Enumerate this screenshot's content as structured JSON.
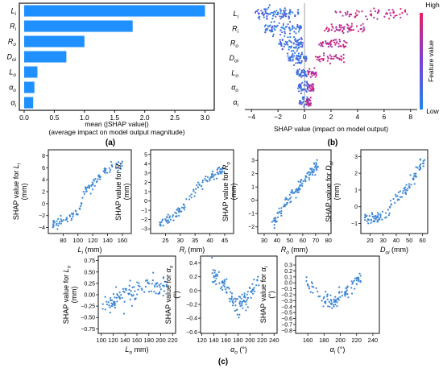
{
  "figure": {
    "panel_labels": [
      "(a)",
      "(b)",
      "(c)"
    ],
    "colors": {
      "bar": "#1e90ff",
      "low": "#1e88e5",
      "high": "#e91e63",
      "point": "#3a86d6",
      "axis": "#111111",
      "zero_line": "#8a8a8a"
    }
  },
  "chart_data": [
    {
      "id": "a",
      "type": "bar",
      "orientation": "horizontal",
      "categories": [
        "L_i",
        "R_i",
        "R_o",
        "D_oi",
        "L_o",
        "α_o",
        "α_i"
      ],
      "category_display": [
        {
          "main": "L",
          "sub": "i"
        },
        {
          "main": "R",
          "sub": "i"
        },
        {
          "main": "R",
          "sub": "o"
        },
        {
          "main": "D",
          "sub": "oi"
        },
        {
          "main": "L",
          "sub": "o"
        },
        {
          "main": "α",
          "sub": "o"
        },
        {
          "main": "α",
          "sub": "i"
        }
      ],
      "values": [
        3.0,
        1.8,
        1.0,
        0.7,
        0.22,
        0.17,
        0.15
      ],
      "xlim": [
        0,
        3.1
      ],
      "xticks": [
        "0.0",
        "0.5",
        "1.0",
        "1.5",
        "2.0",
        "2.5",
        "3.0"
      ],
      "xlabel_line1": "mean (|SHAP value|)",
      "xlabel_line2": "(average impact on model output magnitude)",
      "grid": false
    },
    {
      "id": "b",
      "type": "scatter",
      "subtype": "beeswarm",
      "features": [
        "L_i",
        "R_i",
        "R_o",
        "D_oi",
        "L_o",
        "α_o",
        "α_i"
      ],
      "feature_display": [
        {
          "main": "L",
          "sub": "i"
        },
        {
          "main": "R",
          "sub": "i"
        },
        {
          "main": "R",
          "sub": "o"
        },
        {
          "main": "D",
          "sub": "oi"
        },
        {
          "main": "L",
          "sub": "o"
        },
        {
          "main": "α",
          "sub": "o"
        },
        {
          "main": "α",
          "sub": "i"
        }
      ],
      "xlim": [
        -4.5,
        8.5
      ],
      "xticks": [
        "−4",
        "−2",
        "0",
        "2",
        "4",
        "6",
        "8"
      ],
      "xlabel": "SHAP value (impact on model output)",
      "colorbar": {
        "label": "Feature value",
        "high": "High",
        "low": "Low"
      },
      "spread": [
        {
          "blue_range": [
            -3.8,
            -0.4
          ],
          "blue_center": -2.3,
          "red_range": [
            2.3,
            7.8
          ],
          "n": 150
        },
        {
          "blue_range": [
            -3.0,
            -0.2
          ],
          "blue_center": -1.6,
          "red_range": [
            1.5,
            4.6
          ],
          "n": 130
        },
        {
          "blue_range": [
            -2.0,
            -0.1
          ],
          "blue_center": -0.9,
          "red_range": [
            1.0,
            3.2
          ],
          "n": 120
        },
        {
          "blue_range": [
            -1.3,
            0.2
          ],
          "blue_center": -0.6,
          "red_range": [
            0.8,
            3.0
          ],
          "n": 100
        },
        {
          "blue_range": [
            -0.6,
            0.2
          ],
          "blue_center": -0.1,
          "red_range": [
            0.2,
            0.9
          ],
          "n": 70
        },
        {
          "blue_range": [
            -0.5,
            0.4
          ],
          "blue_center": 0.0,
          "red_range": [
            0.2,
            0.7
          ],
          "n": 60
        },
        {
          "blue_range": [
            -0.4,
            0.3
          ],
          "blue_center": 0.0,
          "red_range": [
            0.1,
            0.5
          ],
          "n": 50
        }
      ]
    },
    {
      "id": "c1",
      "type": "scatter",
      "ylabel_prefix": "SHAP value for ",
      "ylabel_var": {
        "main": "L",
        "sub": "i"
      },
      "ylabel_unit": "(mm)",
      "xlabel_var": {
        "main": "L",
        "sub": "i"
      },
      "xlabel_unit": " (mm)",
      "xlim": [
        60,
        172
      ],
      "ylim": [
        -5,
        9
      ],
      "xticks": [
        {
          "v": 80,
          "t": "80"
        },
        {
          "v": 100,
          "t": "100"
        },
        {
          "v": 120,
          "t": "120"
        },
        {
          "v": 140,
          "t": "140"
        },
        {
          "v": 160,
          "t": "160"
        }
      ],
      "yticks": [
        {
          "v": -4,
          "t": "−4"
        },
        {
          "v": -2,
          "t": "−2"
        },
        {
          "v": 0,
          "t": "0"
        },
        {
          "v": 2,
          "t": "2"
        },
        {
          "v": 4,
          "t": "4"
        },
        {
          "v": 6,
          "t": "6"
        },
        {
          "v": 8,
          "t": "8"
        }
      ],
      "trend": [
        [
          66,
          -3.5
        ],
        [
          90,
          -2.4
        ],
        [
          102,
          -1.0
        ],
        [
          108,
          1.8
        ],
        [
          122,
          3.4
        ],
        [
          140,
          6.0
        ],
        [
          160,
          6.5
        ]
      ],
      "noise": 0.7,
      "n": 110
    },
    {
      "id": "c2",
      "type": "scatter",
      "ylabel_prefix": "SHAP value for ",
      "ylabel_var": {
        "main": "R",
        "sub": "i"
      },
      "ylabel_unit": "(mm)",
      "xlabel_var": {
        "main": "R",
        "sub": "i"
      },
      "xlabel_unit": " (mm)",
      "xlim": [
        20,
        48
      ],
      "ylim": [
        -3.5,
        5.5
      ],
      "xticks": [
        {
          "v": 25,
          "t": "25"
        },
        {
          "v": 30,
          "t": "30"
        },
        {
          "v": 35,
          "t": "35"
        },
        {
          "v": 40,
          "t": "40"
        },
        {
          "v": 45,
          "t": "45"
        }
      ],
      "yticks": [
        {
          "v": -3,
          "t": "−3"
        },
        {
          "v": -2,
          "t": "−2"
        },
        {
          "v": -1,
          "t": "−1"
        },
        {
          "v": 0,
          "t": "0"
        },
        {
          "v": 1,
          "t": "1"
        },
        {
          "v": 2,
          "t": "2"
        },
        {
          "v": 3,
          "t": "3"
        },
        {
          "v": 4,
          "t": "4"
        },
        {
          "v": 5,
          "t": "5"
        }
      ],
      "trend": [
        [
          22,
          -2.7
        ],
        [
          27,
          -1.8
        ],
        [
          32,
          -0.2
        ],
        [
          36,
          1.5
        ],
        [
          40,
          2.5
        ],
        [
          45,
          3.4
        ]
      ],
      "noise": 0.45,
      "n": 110
    },
    {
      "id": "c3",
      "type": "scatter",
      "ylabel_prefix": "SHAP value for ",
      "ylabel_var": {
        "main": "R",
        "sub": "o"
      },
      "ylabel_unit": "(mm)",
      "xlabel_var": {
        "main": "R",
        "sub": "o"
      },
      "xlabel_unit": " (mm)",
      "xlim": [
        25,
        82
      ],
      "ylim": [
        -2.5,
        3.8
      ],
      "xticks": [
        {
          "v": 30,
          "t": "30"
        },
        {
          "v": 40,
          "t": "40"
        },
        {
          "v": 50,
          "t": "50"
        },
        {
          "v": 60,
          "t": "60"
        },
        {
          "v": 70,
          "t": "70"
        },
        {
          "v": 80,
          "t": "80"
        }
      ],
      "yticks": [
        {
          "v": -2,
          "t": "−2"
        },
        {
          "v": -1,
          "t": "−1"
        },
        {
          "v": 0,
          "t": "0"
        },
        {
          "v": 1,
          "t": "1"
        },
        {
          "v": 2,
          "t": "2"
        },
        {
          "v": 3,
          "t": "3"
        }
      ],
      "trend": [
        [
          36,
          -1.8
        ],
        [
          42,
          -1.0
        ],
        [
          48,
          0.0
        ],
        [
          55,
          0.8
        ],
        [
          62,
          1.6
        ],
        [
          72,
          2.6
        ]
      ],
      "noise": 0.4,
      "n": 110
    },
    {
      "id": "c4",
      "type": "scatter",
      "ylabel_prefix": "SHAP value for ",
      "ylabel_var": {
        "main": "D",
        "sub": "oi"
      },
      "ylabel_unit": "(mm)",
      "xlabel_var": {
        "main": "D",
        "sub": "oi"
      },
      "xlabel_unit": " (mm)",
      "xlim": [
        13,
        64
      ],
      "ylim": [
        -1.6,
        3.4
      ],
      "xticks": [
        {
          "v": 20,
          "t": "20"
        },
        {
          "v": 30,
          "t": "30"
        },
        {
          "v": 40,
          "t": "40"
        },
        {
          "v": 50,
          "t": "50"
        },
        {
          "v": 60,
          "t": "60"
        }
      ],
      "yticks": [
        {
          "v": -1,
          "t": "−1"
        },
        {
          "v": 0,
          "t": "0"
        },
        {
          "v": 1,
          "t": "1"
        },
        {
          "v": 2,
          "t": "2"
        },
        {
          "v": 3,
          "t": "3"
        }
      ],
      "trend": [
        [
          16,
          -0.6
        ],
        [
          25,
          -0.7
        ],
        [
          33,
          -0.3
        ],
        [
          40,
          0.4
        ],
        [
          48,
          1.0
        ],
        [
          56,
          2.2
        ],
        [
          62,
          2.7
        ]
      ],
      "noise": 0.3,
      "n": 110
    },
    {
      "id": "c5",
      "type": "scatter",
      "ylabel_prefix": "SHAP value for ",
      "ylabel_var": {
        "main": "L",
        "sub": "o"
      },
      "ylabel_unit": "(mm)",
      "xlabel_var": {
        "main": "L",
        "sub": "o"
      },
      "xlabel_unit": " mm)",
      "xlim": [
        95,
        225
      ],
      "ylim": [
        -0.85,
        0.85
      ],
      "xticks": [
        {
          "v": 100,
          "t": "100"
        },
        {
          "v": 120,
          "t": "120"
        },
        {
          "v": 140,
          "t": "140"
        },
        {
          "v": 160,
          "t": "160"
        },
        {
          "v": 180,
          "t": "180"
        },
        {
          "v": 200,
          "t": "200"
        },
        {
          "v": 220,
          "t": "220"
        }
      ],
      "yticks": [
        {
          "v": -0.75,
          "t": "−0.75"
        },
        {
          "v": -0.5,
          "t": "−0.50"
        },
        {
          "v": -0.25,
          "t": "−0.25"
        },
        {
          "v": 0,
          "t": "0.00"
        },
        {
          "v": 0.25,
          "t": "0.25"
        },
        {
          "v": 0.5,
          "t": "0.50"
        },
        {
          "v": 0.75,
          "t": "0.75"
        }
      ],
      "trend": [
        [
          102,
          -0.25
        ],
        [
          120,
          -0.15
        ],
        [
          140,
          0.0
        ],
        [
          160,
          0.1
        ],
        [
          180,
          0.22
        ],
        [
          210,
          0.2
        ]
      ],
      "noise": 0.18,
      "n": 110
    },
    {
      "id": "c6",
      "type": "scatter",
      "ylabel_prefix": "SHAP value for ",
      "ylabel_var": {
        "main": "α",
        "sub": "o"
      },
      "ylabel_unit": "(°)",
      "xlabel_var": {
        "main": "α",
        "sub": "o"
      },
      "xlabel_unit": " (°)",
      "xlim": [
        118,
        245
      ],
      "ylim": [
        -0.62,
        0.5
      ],
      "xticks": [
        {
          "v": 120,
          "t": "120"
        },
        {
          "v": 140,
          "t": "140"
        },
        {
          "v": 160,
          "t": "160"
        },
        {
          "v": 180,
          "t": "180"
        },
        {
          "v": 200,
          "t": "200"
        },
        {
          "v": 220,
          "t": "220"
        },
        {
          "v": 240,
          "t": "240"
        }
      ],
      "yticks": [
        {
          "v": -0.6,
          "t": "−0.6"
        },
        {
          "v": -0.4,
          "t": "−0.4"
        },
        {
          "v": -0.2,
          "t": "−0.2"
        },
        {
          "v": 0,
          "t": "0.0"
        },
        {
          "v": 0.2,
          "t": "0.2"
        },
        {
          "v": 0.4,
          "t": "0.4"
        }
      ],
      "trend": [
        [
          135,
          0.28
        ],
        [
          150,
          0.12
        ],
        [
          165,
          -0.05
        ],
        [
          180,
          -0.25
        ],
        [
          195,
          -0.1
        ],
        [
          215,
          0.15
        ]
      ],
      "noise": 0.12,
      "n": 110
    },
    {
      "id": "c7",
      "type": "scatter",
      "ylabel_prefix": "SHAP value for ",
      "ylabel_var": {
        "main": "α",
        "sub": "i"
      },
      "ylabel_unit": "(°)",
      "xlabel_var": {
        "main": "α",
        "sub": "i"
      },
      "xlabel_unit": " (°)",
      "xlim": [
        145,
        248
      ],
      "ylim": [
        -0.85,
        0.45
      ],
      "xticks": [
        {
          "v": 160,
          "t": "160"
        },
        {
          "v": 180,
          "t": "180"
        },
        {
          "v": 200,
          "t": "200"
        },
        {
          "v": 220,
          "t": "220"
        },
        {
          "v": 240,
          "t": "240"
        }
      ],
      "yticks": [
        {
          "v": -0.8,
          "t": "−0.8"
        },
        {
          "v": -0.7,
          "t": "−0.7"
        },
        {
          "v": -0.6,
          "t": "−0.6"
        },
        {
          "v": -0.5,
          "t": "−0.5"
        },
        {
          "v": -0.4,
          "t": "−0.4"
        },
        {
          "v": -0.3,
          "t": "−0.3"
        },
        {
          "v": -0.2,
          "t": "−0.2"
        },
        {
          "v": -0.1,
          "t": "−0.1"
        },
        {
          "v": 0,
          "t": "0.0"
        },
        {
          "v": 0.1,
          "t": "0.1"
        },
        {
          "v": 0.2,
          "t": "0.2"
        },
        {
          "v": 0.3,
          "t": "0.3"
        }
      ],
      "trend": [
        [
          158,
          0.02
        ],
        [
          168,
          -0.1
        ],
        [
          178,
          -0.25
        ],
        [
          190,
          -0.35
        ],
        [
          205,
          -0.15
        ],
        [
          225,
          0.1
        ]
      ],
      "noise": 0.1,
      "n": 100
    }
  ]
}
